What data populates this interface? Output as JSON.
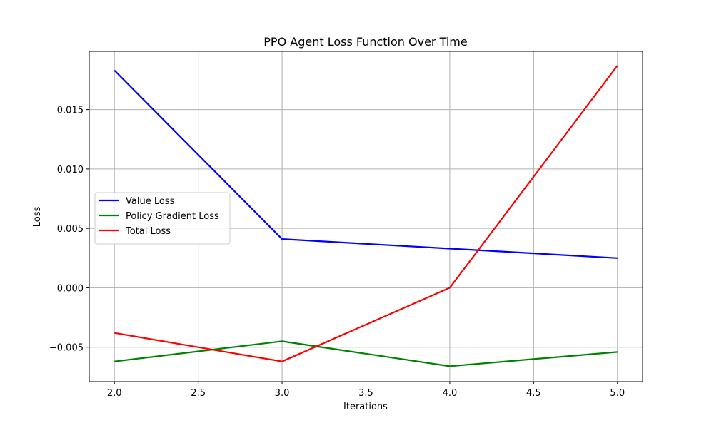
{
  "chart_data": {
    "type": "line",
    "title": "PPO Agent Loss Function Over Time",
    "xlabel": "Iterations",
    "ylabel": "Loss",
    "x": [
      2.0,
      3.0,
      4.0,
      5.0
    ],
    "xlim": [
      1.85,
      5.15
    ],
    "ylim": [
      -0.0079,
      0.0199
    ],
    "xticks": [
      2.0,
      2.5,
      3.0,
      3.5,
      4.0,
      4.5,
      5.0
    ],
    "xtick_labels": [
      "2.0",
      "2.5",
      "3.0",
      "3.5",
      "4.0",
      "4.5",
      "5.0"
    ],
    "yticks": [
      -0.005,
      0.0,
      0.005,
      0.01,
      0.015
    ],
    "ytick_labels": [
      "−0.005",
      "0.000",
      "0.005",
      "0.010",
      "0.015"
    ],
    "grid": true,
    "legend_position": "center-left",
    "series": [
      {
        "name": "Value Loss",
        "color": "#0000ff",
        "values": [
          0.0183,
          0.0041,
          0.0033,
          0.0025
        ]
      },
      {
        "name": "Policy Gradient Loss",
        "color": "#008000",
        "values": [
          -0.0062,
          -0.0045,
          -0.0066,
          -0.0054
        ]
      },
      {
        "name": "Total Loss",
        "color": "#ff0000",
        "values": [
          -0.0038,
          -0.0062,
          0.0,
          0.0187
        ]
      }
    ]
  }
}
